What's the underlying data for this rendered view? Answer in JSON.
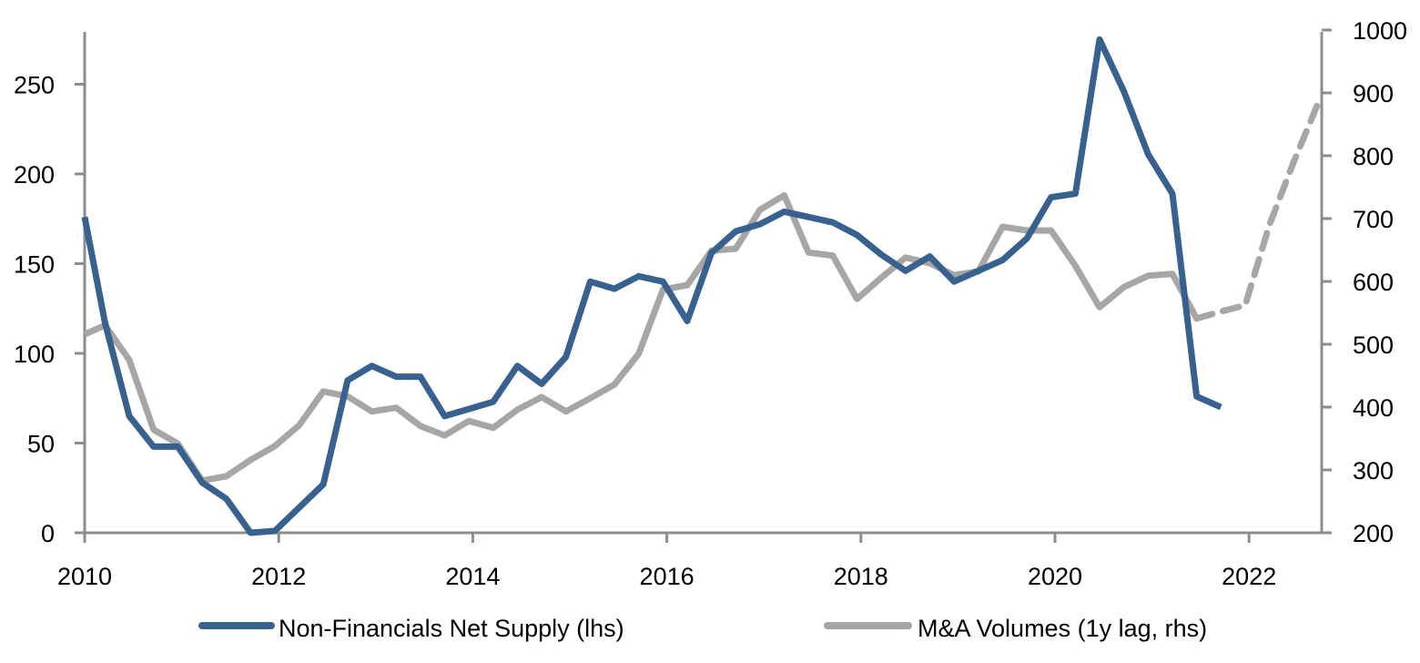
{
  "chart_data": {
    "type": "line",
    "title": "",
    "xlabel": "",
    "ylabel_left": "",
    "ylabel_right": "",
    "grid": false,
    "legend_position": "bottom",
    "x_axis": {
      "range": [
        2010,
        2022.75
      ],
      "ticks": [
        2010,
        2012,
        2014,
        2016,
        2018,
        2020,
        2022
      ],
      "tick_labels": [
        "2010",
        "2012",
        "2014",
        "2016",
        "2018",
        "2020",
        "2022"
      ]
    },
    "y_axis_left": {
      "range": [
        0,
        280
      ],
      "ticks": [
        0,
        50,
        100,
        150,
        200,
        250
      ],
      "tick_labels": [
        "0",
        "50",
        "100",
        "150",
        "200",
        "250"
      ]
    },
    "y_axis_right": {
      "range": [
        200,
        1000
      ],
      "ticks": [
        200,
        300,
        400,
        500,
        600,
        700,
        800,
        900,
        1000
      ],
      "tick_labels": [
        "200",
        "300",
        "400",
        "500",
        "600",
        "700",
        "800",
        "900",
        "1000"
      ]
    },
    "series": [
      {
        "name": "Non-Financials Net Supply (lhs)",
        "axis": "left",
        "color": "#37618f",
        "style": "solid",
        "x": [
          2010.0,
          2010.21,
          2010.46,
          2010.71,
          2010.96,
          2011.21,
          2011.46,
          2011.71,
          2011.96,
          2012.21,
          2012.46,
          2012.71,
          2012.96,
          2013.21,
          2013.46,
          2013.71,
          2013.96,
          2014.21,
          2014.46,
          2014.71,
          2014.96,
          2015.21,
          2015.46,
          2015.71,
          2015.96,
          2016.21,
          2016.46,
          2016.71,
          2016.96,
          2017.21,
          2017.46,
          2017.71,
          2017.96,
          2018.21,
          2018.46,
          2018.71,
          2018.96,
          2019.21,
          2019.46,
          2019.71,
          2019.96,
          2020.21,
          2020.46,
          2020.71,
          2020.96,
          2021.21,
          2021.46,
          2021.71
        ],
        "values": [
          176,
          117,
          65,
          48,
          48,
          28,
          19,
          0,
          1,
          14,
          27,
          85,
          93,
          87,
          87,
          65,
          69,
          73,
          93,
          83,
          98,
          140,
          136,
          143,
          140,
          118,
          156,
          168,
          172,
          179,
          176,
          173,
          166,
          155,
          146,
          154,
          140,
          146,
          152,
          164,
          187,
          189,
          275,
          246,
          211,
          189,
          76,
          70
        ]
      },
      {
        "name": "M&A Volumes (1y lag, rhs)",
        "axis": "right",
        "color": "#a6a6a6",
        "style": "solid",
        "x": [
          2010.0,
          2010.21,
          2010.46,
          2010.71,
          2010.96,
          2011.21,
          2011.46,
          2011.71,
          2011.96,
          2012.21,
          2012.46,
          2012.71,
          2012.96,
          2013.21,
          2013.46,
          2013.71,
          2013.96,
          2014.21,
          2014.46,
          2014.71,
          2014.96,
          2015.21,
          2015.46,
          2015.71,
          2015.96,
          2016.21,
          2016.46,
          2016.71,
          2016.96,
          2017.21,
          2017.46,
          2017.71,
          2017.96,
          2018.21,
          2018.46,
          2018.71,
          2018.96,
          2019.21,
          2019.46,
          2019.71,
          2019.96,
          2020.21,
          2020.46,
          2020.71,
          2020.96,
          2021.21,
          2021.46
        ],
        "values": [
          516,
          530,
          475,
          364,
          342,
          283,
          290,
          316,
          338,
          371,
          425,
          417,
          393,
          399,
          370,
          355,
          378,
          367,
          396,
          416,
          393,
          414,
          436,
          485,
          587,
          594,
          649,
          652,
          714,
          737,
          646,
          641,
          572,
          606,
          638,
          629,
          610,
          616,
          687,
          681,
          681,
          625,
          559,
          591,
          609,
          612,
          541
        ],
        "projection": {
          "style": "dashed",
          "x": [
            2021.46,
            2021.71,
            2021.96,
            2022.21,
            2022.46,
            2022.71
          ],
          "values": [
            541,
            552,
            562,
            690,
            790,
            883
          ]
        }
      }
    ],
    "legend": [
      {
        "label": "Non-Financials Net Supply (lhs)",
        "color": "#37618f"
      },
      {
        "label": "M&A Volumes (1y lag, rhs)",
        "color": "#a6a6a6"
      }
    ],
    "axis_color": "#8c8c8c"
  }
}
